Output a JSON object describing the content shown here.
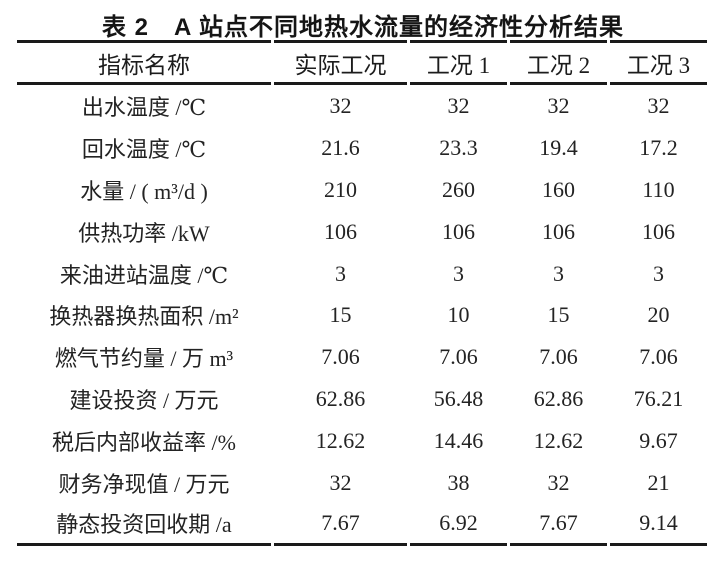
{
  "title": "表 2　A 站点不同地热水流量的经济性分析结果",
  "table": {
    "headers": [
      "指标名称",
      "实际工况",
      "工况 1",
      "工况 2",
      "工况 3"
    ],
    "rows": [
      {
        "label": "出水温度 /℃",
        "values": [
          "32",
          "32",
          "32",
          "32"
        ]
      },
      {
        "label": "回水温度 /℃",
        "values": [
          "21.6",
          "23.3",
          "19.4",
          "17.2"
        ]
      },
      {
        "label": "水量 / ( m³/d )",
        "values": [
          "210",
          "260",
          "160",
          "110"
        ]
      },
      {
        "label": "供热功率 /kW",
        "values": [
          "106",
          "106",
          "106",
          "106"
        ]
      },
      {
        "label": "来油进站温度 /℃",
        "values": [
          "3",
          "3",
          "3",
          "3"
        ]
      },
      {
        "label": "换热器换热面积 /m²",
        "values": [
          "15",
          "10",
          "15",
          "20"
        ]
      },
      {
        "label": "燃气节约量 / 万 m³",
        "values": [
          "7.06",
          "7.06",
          "7.06",
          "7.06"
        ]
      },
      {
        "label": "建设投资 / 万元",
        "values": [
          "62.86",
          "56.48",
          "62.86",
          "76.21"
        ]
      },
      {
        "label": "税后内部收益率 /%",
        "values": [
          "12.62",
          "14.46",
          "12.62",
          "9.67"
        ]
      },
      {
        "label": "财务净现值 / 万元",
        "values": [
          "32",
          "38",
          "32",
          "21"
        ]
      },
      {
        "label": "静态投资回收期 /a",
        "values": [
          "7.67",
          "6.92",
          "7.67",
          "9.14"
        ]
      }
    ]
  }
}
